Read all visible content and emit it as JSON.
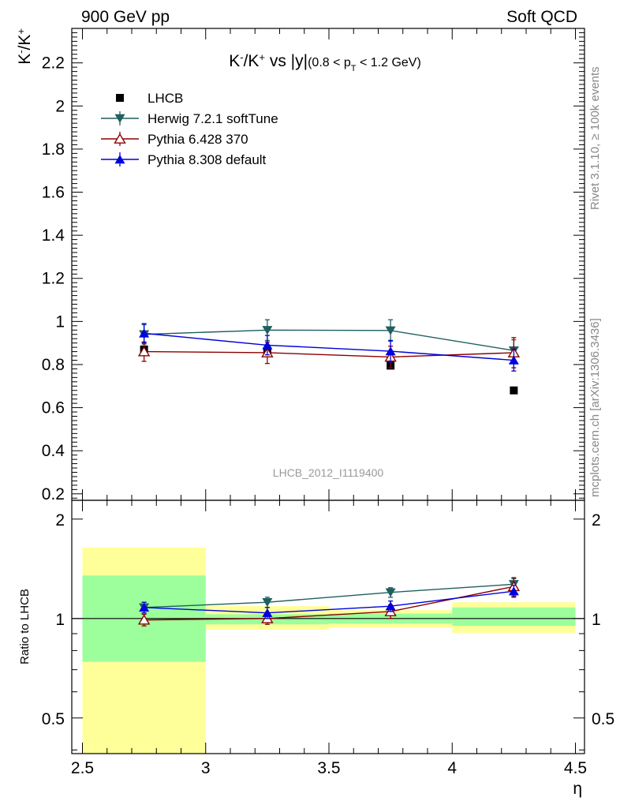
{
  "header": {
    "left": "900 GeV pp",
    "right": "Soft QCD"
  },
  "side_labels": {
    "upper": "Rivet 3.1.10, ≥ 100k events",
    "lower": "mcplots.cern.ch [arXiv:1306.3436]"
  },
  "chart_data": {
    "type": "scatter",
    "title": "K⁻/K⁺ vs |y| (0.8 < pT < 1.2 GeV)",
    "title_parts": {
      "main": "K",
      "sup1": "-",
      "slash": "/K",
      "sup2": "+",
      "vs": " vs |y|",
      "range": "(0.8 < p",
      "sub": "T",
      "range_end": " < 1.2 GeV)"
    },
    "ylabel_parts": {
      "k1": "K",
      "sup1": "-",
      "slash": "/K",
      "sup2": "+"
    },
    "watermark": "LHCB_2012_I1119400",
    "xlabel": "η",
    "xlim": [
      2.5,
      4.5
    ],
    "ylim": [
      0.17,
      2.36
    ],
    "x_ticks": [
      "2.5",
      "3",
      "3.5",
      "4",
      "4.5"
    ],
    "y_ticks": [
      "0.2",
      "0.4",
      "0.6",
      "0.8",
      "1",
      "1.2",
      "1.4",
      "1.6",
      "1.8",
      "2",
      "2.2"
    ],
    "ratio_ylabel": "Ratio to LHCB",
    "ratio_ylim": [
      0.39,
      2.28
    ],
    "ratio_y_ticks": [
      "0.5",
      "1",
      "2"
    ],
    "bins": [
      [
        2.5,
        3.0
      ],
      [
        3.0,
        3.5
      ],
      [
        3.5,
        4.0
      ],
      [
        4.0,
        4.5
      ]
    ],
    "x": [
      2.75,
      3.25,
      3.75,
      4.25
    ],
    "series": [
      {
        "name": "LHCB",
        "marker": "square",
        "color": "#000000",
        "values": [
          0.87,
          0.855,
          0.795,
          0.68
        ],
        "band_inner": [
          [
            0.74,
            1.35
          ],
          [
            0.96,
            1.03
          ],
          [
            0.965,
            1.035
          ],
          [
            0.95,
            1.08
          ]
        ],
        "band_outer": [
          [
            0.37,
            1.64
          ],
          [
            0.925,
            1.09
          ],
          [
            0.94,
            1.06
          ],
          [
            0.905,
            1.12
          ]
        ]
      },
      {
        "name": "Herwig 7.2.1 softTune",
        "marker": "triangle-down",
        "color": "#1f5f5f",
        "values": [
          0.94,
          0.96,
          0.958,
          0.865
        ],
        "errors": [
          0.045,
          0.048,
          0.05,
          0.05
        ],
        "ratio": [
          1.08,
          1.12,
          1.2,
          1.27
        ],
        "ratio_errors": [
          0.04,
          0.04,
          0.04,
          0.05
        ]
      },
      {
        "name": "Pythia 6.428 370",
        "marker": "triangle-open",
        "color": "#8b0000",
        "values": [
          0.86,
          0.855,
          0.835,
          0.855
        ],
        "errors": [
          0.045,
          0.05,
          0.05,
          0.07
        ],
        "ratio": [
          0.99,
          1.0,
          1.05,
          1.25
        ],
        "ratio_errors": [
          0.04,
          0.04,
          0.05,
          0.08
        ]
      },
      {
        "name": "Pythia 8.308 default",
        "marker": "triangle-up",
        "color": "#0000dd",
        "values": [
          0.945,
          0.89,
          0.862,
          0.82
        ],
        "errors": [
          0.045,
          0.045,
          0.05,
          0.05
        ],
        "ratio": [
          1.08,
          1.04,
          1.09,
          1.21
        ],
        "ratio_errors": [
          0.04,
          0.04,
          0.04,
          0.05
        ]
      }
    ],
    "legend_placement": "top-left"
  }
}
